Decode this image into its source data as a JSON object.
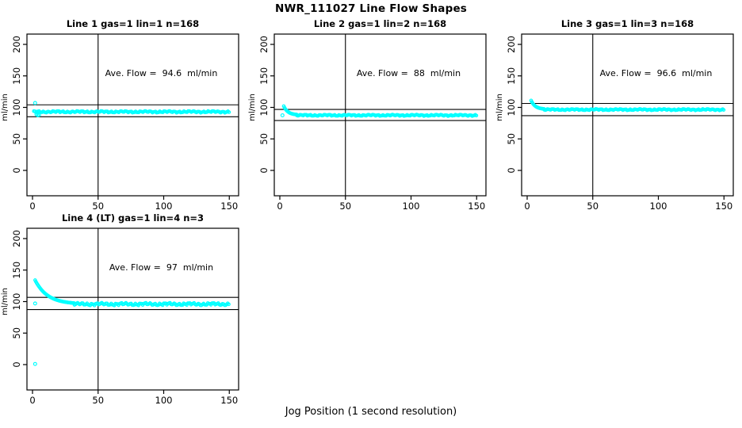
{
  "page": {
    "title": "NWR_111027  Line Flow Shapes",
    "xlabel": "Jog Position (1 second resolution)"
  },
  "point_color": "#00ffff",
  "axis_color": "#000000",
  "chart_data": [
    {
      "type": "scatter",
      "title": "Line 1 gas=1 lin=1 n=168",
      "line": 1,
      "gas": 1,
      "lin": 1,
      "n": 168,
      "ave_flow_ml_min": 94.6,
      "annotation": "Ave. Flow =  94.6  ml/min",
      "ylabel": "ml/min",
      "x_ticks": [
        0,
        50,
        100,
        150
      ],
      "y_ticks": [
        0,
        50,
        100,
        150,
        200
      ],
      "xlim": [
        -4,
        157
      ],
      "ylim": [
        -40,
        216
      ],
      "vline_x": 50,
      "ref_lines": [
        104.1,
        85.1
      ],
      "series": {
        "outliers": [
          [
            2,
            107
          ],
          [
            3,
            89
          ],
          [
            4,
            87.5
          ],
          [
            5,
            88
          ]
        ],
        "decay": null,
        "band": {
          "x_start": 1,
          "x_end": 150,
          "level": 93,
          "jitter": 1.7
        }
      }
    },
    {
      "type": "scatter",
      "title": "Line 2 gas=1 lin=2 n=168",
      "line": 2,
      "gas": 1,
      "lin": 2,
      "n": 168,
      "ave_flow_ml_min": 88,
      "annotation": "Ave. Flow =  88  ml/min",
      "ylabel": "ml/min",
      "x_ticks": [
        0,
        50,
        100,
        150
      ],
      "y_ticks": [
        0,
        50,
        100,
        150,
        200
      ],
      "xlim": [
        -4,
        157
      ],
      "ylim": [
        -40,
        216
      ],
      "vline_x": 50,
      "ref_lines": [
        96.8,
        79.2
      ],
      "series": {
        "outliers": [
          [
            2,
            87.5
          ]
        ],
        "decay": {
          "x_start": 3,
          "x_end": 13,
          "from": 102,
          "to": 88
        },
        "band": {
          "x_start": 13,
          "x_end": 150,
          "level": 87.5,
          "jitter": 1.4
        }
      }
    },
    {
      "type": "scatter",
      "title": "Line 3 gas=1 lin=3 n=168",
      "line": 3,
      "gas": 1,
      "lin": 3,
      "n": 168,
      "ave_flow_ml_min": 96.6,
      "annotation": "Ave. Flow =  96.6  ml/min",
      "ylabel": "ml/min",
      "x_ticks": [
        0,
        50,
        100,
        150
      ],
      "y_ticks": [
        0,
        50,
        100,
        150,
        200
      ],
      "xlim": [
        -4,
        157
      ],
      "ylim": [
        -40,
        216
      ],
      "vline_x": 50,
      "ref_lines": [
        106.3,
        86.9
      ],
      "series": {
        "outliers": [],
        "decay": {
          "x_start": 3,
          "x_end": 13,
          "from": 111,
          "to": 97
        },
        "band": {
          "x_start": 13,
          "x_end": 150,
          "level": 96.5,
          "jitter": 1.4
        }
      }
    },
    {
      "type": "scatter",
      "title": "Line 4 (LT) gas=1 lin=4 n=3",
      "line": 4,
      "gas": 1,
      "lin": 4,
      "n": 3,
      "ave_flow_ml_min": 97,
      "annotation": "Ave. Flow =  97  ml/min",
      "ylabel": "ml/min",
      "x_ticks": [
        0,
        50,
        100,
        150
      ],
      "y_ticks": [
        0,
        50,
        100,
        150,
        200
      ],
      "xlim": [
        -4,
        157
      ],
      "ylim": [
        -40,
        216
      ],
      "vline_x": 50,
      "ref_lines": [
        106.7,
        87.3
      ],
      "series": {
        "outliers": [
          [
            2,
            1
          ],
          [
            2,
            97
          ]
        ],
        "decay": {
          "x_start": 2,
          "x_end": 32,
          "from": 134,
          "to": 96
        },
        "band": {
          "x_start": 32,
          "x_end": 150,
          "level": 96,
          "jitter": 2.6
        }
      }
    }
  ]
}
